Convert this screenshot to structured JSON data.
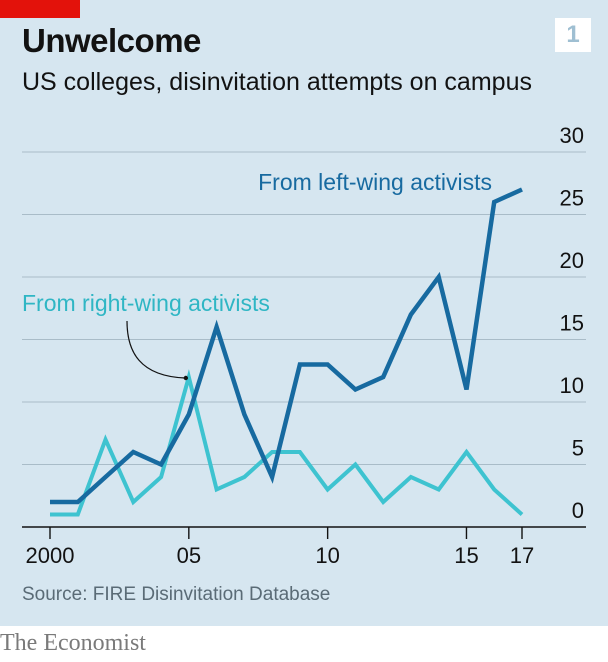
{
  "header": {
    "title": "Unwelcome",
    "subtitle": "US colleges, disinvitation attempts on campus",
    "chart_number": "1"
  },
  "source": "Source: FIRE Disinvitation Database",
  "footer": "The Economist",
  "colors": {
    "panel": "#d6e6f0",
    "accent_red": "#e3120b",
    "left_wing": "#176aa0",
    "right_wing": "#3ec3d0",
    "grid": "#a9bcc8",
    "axis": "#121212"
  },
  "chart_data": {
    "type": "line",
    "title": "Unwelcome",
    "subtitle": "US colleges, disinvitation attempts on campus",
    "x": [
      2000,
      2001,
      2002,
      2003,
      2004,
      2005,
      2006,
      2007,
      2008,
      2009,
      2010,
      2011,
      2012,
      2013,
      2014,
      2015,
      2016,
      2017
    ],
    "x_tick_values": [
      2000,
      2005,
      2010,
      2015,
      2017
    ],
    "x_tick_labels": [
      "2000",
      "05",
      "10",
      "15",
      "17"
    ],
    "y_ticks": [
      0,
      5,
      10,
      15,
      20,
      25,
      30
    ],
    "ylim": [
      0,
      30
    ],
    "y_axis_side": "right",
    "grid": true,
    "series": [
      {
        "name": "From left-wing activists",
        "color": "#176aa0",
        "values": [
          2,
          2,
          4,
          6,
          5,
          9,
          16,
          9,
          4,
          13,
          13,
          11,
          12,
          17,
          20,
          11,
          26,
          27
        ]
      },
      {
        "name": "From right-wing activists",
        "color": "#3ec3d0",
        "values": [
          1,
          1,
          7,
          2,
          4,
          12,
          3,
          4,
          6,
          6,
          3,
          5,
          2,
          4,
          3,
          6,
          3,
          1
        ]
      }
    ]
  }
}
